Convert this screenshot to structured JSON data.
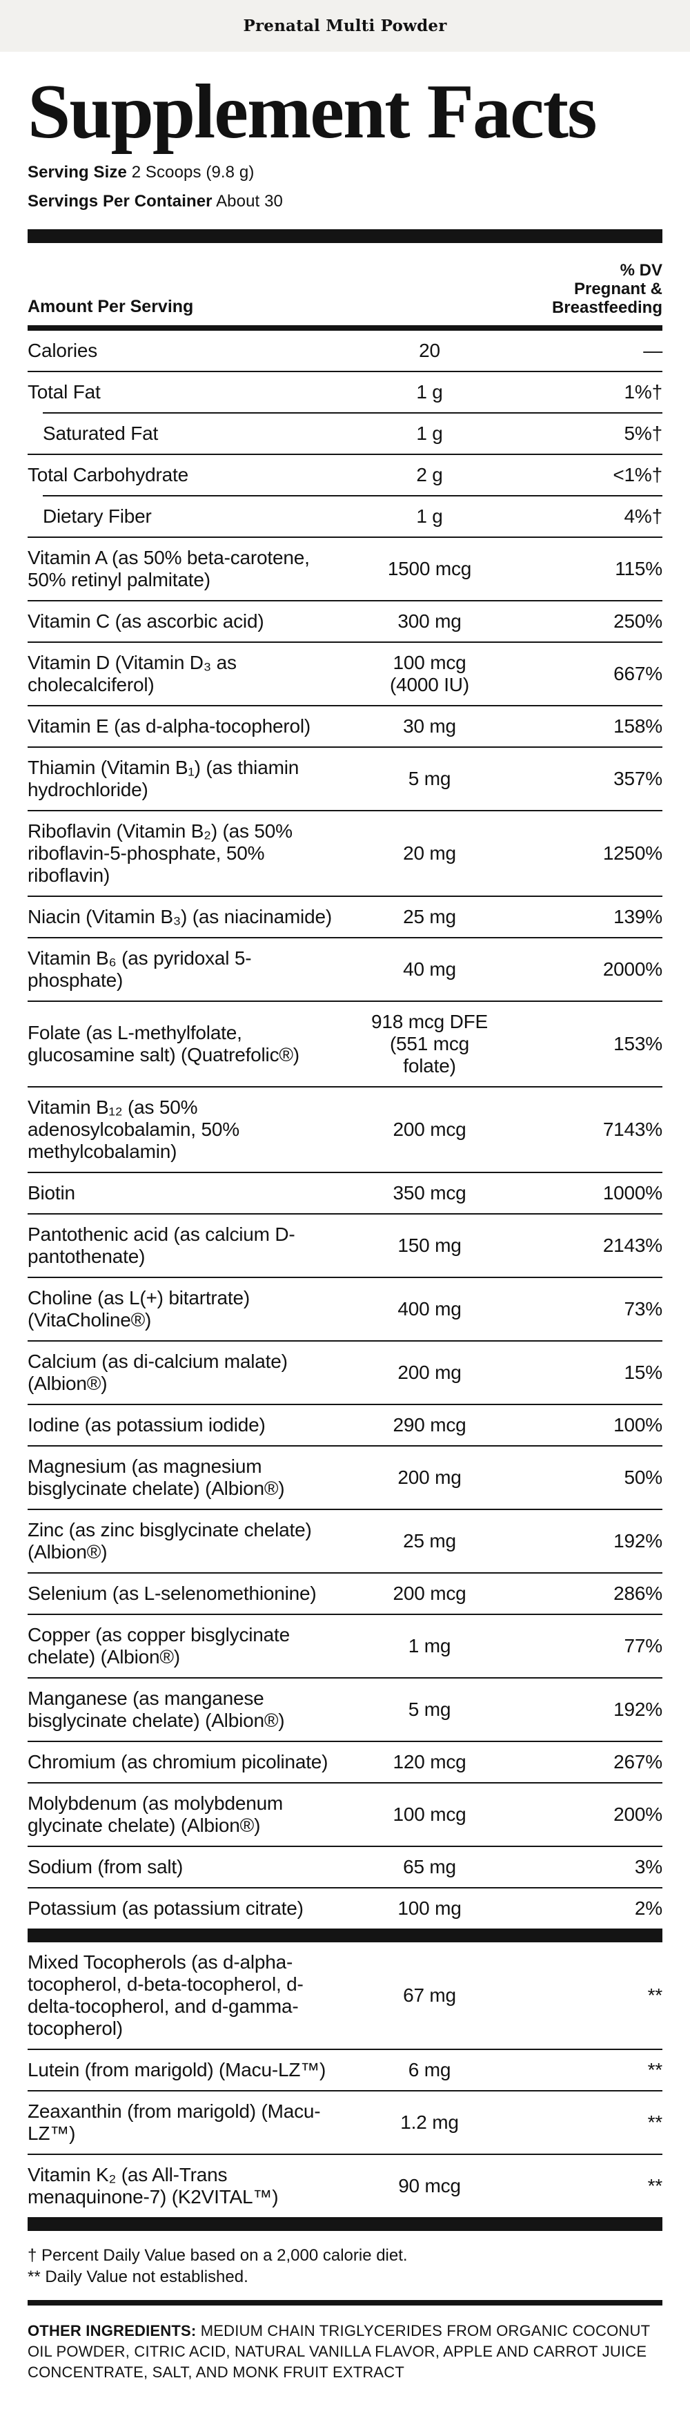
{
  "colors": {
    "banner_bg": "#f2f1ee",
    "text": "#121212",
    "rule": "#141414"
  },
  "banner": {
    "title": "Prenatal Multi Powder"
  },
  "header": {
    "title": "Supplement Facts",
    "serving_size_label": "Serving Size",
    "serving_size_value": "2 Scoops (9.8 g)",
    "servings_label": "Servings Per Container",
    "servings_value": "About 30"
  },
  "table": {
    "amount_header": "Amount Per Serving",
    "dv_header": "% DV\nPregnant &\nBreastfeeding",
    "rows": [
      {
        "name": "Calories",
        "amount": "20",
        "dv": "—",
        "indent": false,
        "sep": "full"
      },
      {
        "name": "Total Fat",
        "amount": "1 g",
        "dv": "1%†",
        "indent": false,
        "sep": "indent"
      },
      {
        "name": "Saturated Fat",
        "amount": "1 g",
        "dv": "5%†",
        "indent": true,
        "sep": "full"
      },
      {
        "name": "Total Carbohydrate",
        "amount": "2 g",
        "dv": "<1%†",
        "indent": false,
        "sep": "indent"
      },
      {
        "name": "Dietary Fiber",
        "amount": "1 g",
        "dv": "4%†",
        "indent": true,
        "sep": "full"
      },
      {
        "name": "Vitamin A (as 50% beta-carotene, 50% retinyl palmitate)",
        "amount": "1500 mcg",
        "dv": "115%",
        "indent": false,
        "sep": "full"
      },
      {
        "name": "Vitamin C (as ascorbic acid)",
        "amount": "300 mg",
        "dv": "250%",
        "indent": false,
        "sep": "full"
      },
      {
        "name": "Vitamin D (Vitamin D₃ as cholecalciferol)",
        "amount": "100 mcg\n(4000 IU)",
        "dv": "667%",
        "indent": false,
        "sep": "full"
      },
      {
        "name": "Vitamin E (as d-alpha-tocopherol)",
        "amount": "30 mg",
        "dv": "158%",
        "indent": false,
        "sep": "full"
      },
      {
        "name": "Thiamin (Vitamin B₁) (as thiamin hydrochloride)",
        "amount": "5 mg",
        "dv": "357%",
        "indent": false,
        "sep": "full"
      },
      {
        "name": "Riboflavin (Vitamin B₂) (as 50% riboflavin-5-phosphate, 50% riboflavin)",
        "amount": "20 mg",
        "dv": "1250%",
        "indent": false,
        "sep": "full"
      },
      {
        "name": "Niacin (Vitamin B₃) (as niacinamide)",
        "amount": "25 mg",
        "dv": "139%",
        "indent": false,
        "sep": "full"
      },
      {
        "name": "Vitamin B₆ (as pyridoxal 5-phosphate)",
        "amount": "40 mg",
        "dv": "2000%",
        "indent": false,
        "sep": "full"
      },
      {
        "name": "Folate (as L-methylfolate, glucosamine salt) (Quatrefolic®)",
        "amount": "918 mcg DFE\n(551 mcg\nfolate)",
        "dv": "153%",
        "indent": false,
        "sep": "full"
      },
      {
        "name": "Vitamin B₁₂ (as 50% adenosylcobalamin, 50% methylcobalamin)",
        "amount": "200 mcg",
        "dv": "7143%",
        "indent": false,
        "sep": "full"
      },
      {
        "name": "Biotin",
        "amount": "350 mcg",
        "dv": "1000%",
        "indent": false,
        "sep": "full"
      },
      {
        "name": "Pantothenic acid (as calcium D-pantothenate)",
        "amount": "150 mg",
        "dv": "2143%",
        "indent": false,
        "sep": "full"
      },
      {
        "name": "Choline (as L(+) bitartrate) (VitaCholine®)",
        "amount": "400 mg",
        "dv": "73%",
        "indent": false,
        "sep": "full"
      },
      {
        "name": "Calcium (as di-calcium malate) (Albion®)",
        "amount": "200 mg",
        "dv": "15%",
        "indent": false,
        "sep": "full"
      },
      {
        "name": "Iodine (as potassium iodide)",
        "amount": "290 mcg",
        "dv": "100%",
        "indent": false,
        "sep": "full"
      },
      {
        "name": "Magnesium (as magnesium bisglycinate chelate) (Albion®)",
        "amount": "200 mg",
        "dv": "50%",
        "indent": false,
        "sep": "full"
      },
      {
        "name": "Zinc (as zinc bisglycinate chelate) (Albion®)",
        "amount": "25 mg",
        "dv": "192%",
        "indent": false,
        "sep": "full"
      },
      {
        "name": "Selenium (as L-selenomethionine)",
        "amount": "200 mcg",
        "dv": "286%",
        "indent": false,
        "sep": "full"
      },
      {
        "name": "Copper (as copper bisglycinate chelate) (Albion®)",
        "amount": "1 mg",
        "dv": "77%",
        "indent": false,
        "sep": "full"
      },
      {
        "name": "Manganese (as manganese bisglycinate chelate) (Albion®)",
        "amount": "5 mg",
        "dv": "192%",
        "indent": false,
        "sep": "full"
      },
      {
        "name": "Chromium (as chromium picolinate)",
        "amount": "120 mcg",
        "dv": "267%",
        "indent": false,
        "sep": "full"
      },
      {
        "name": "Molybdenum (as molybdenum glycinate chelate) (Albion®)",
        "amount": "100 mcg",
        "dv": "200%",
        "indent": false,
        "sep": "full"
      },
      {
        "name": "Sodium (from salt)",
        "amount": "65 mg",
        "dv": "3%",
        "indent": false,
        "sep": "full"
      },
      {
        "name": "Potassium (as potassium citrate)",
        "amount": "100 mg",
        "dv": "2%",
        "indent": false,
        "sep": "none"
      }
    ],
    "no_dv_rows": [
      {
        "name": "Mixed Tocopherols (as d-alpha-tocopherol, d-beta-tocopherol, d-delta-tocopherol, and d-gamma-tocopherol)",
        "amount": "67 mg",
        "dv": "**",
        "indent": false,
        "sep": "full"
      },
      {
        "name": "Lutein (from marigold) (Macu-LZ™)",
        "amount": "6 mg",
        "dv": "**",
        "indent": false,
        "sep": "full"
      },
      {
        "name": "Zeaxanthin (from marigold) (Macu-LZ™)",
        "amount": "1.2 mg",
        "dv": "**",
        "indent": false,
        "sep": "full"
      },
      {
        "name": "Vitamin K₂ (as All-Trans menaquinone-7) (K2VITAL™)",
        "amount": "90 mcg",
        "dv": "**",
        "indent": false,
        "sep": "none"
      }
    ]
  },
  "footnotes": {
    "dagger": "† Percent Daily Value based on a 2,000 calorie diet.",
    "double_asterisk": "** Daily Value not established."
  },
  "other_ingredients": {
    "label": "OTHER INGREDIENTS:",
    "text": "MEDIUM CHAIN TRIGLYCERIDES FROM ORGANIC COCONUT OIL POWDER, CITRIC ACID, NATURAL VANILLA FLAVOR, APPLE AND CARROT JUICE CONCENTRATE, SALT, AND MONK FRUIT EXTRACT"
  }
}
